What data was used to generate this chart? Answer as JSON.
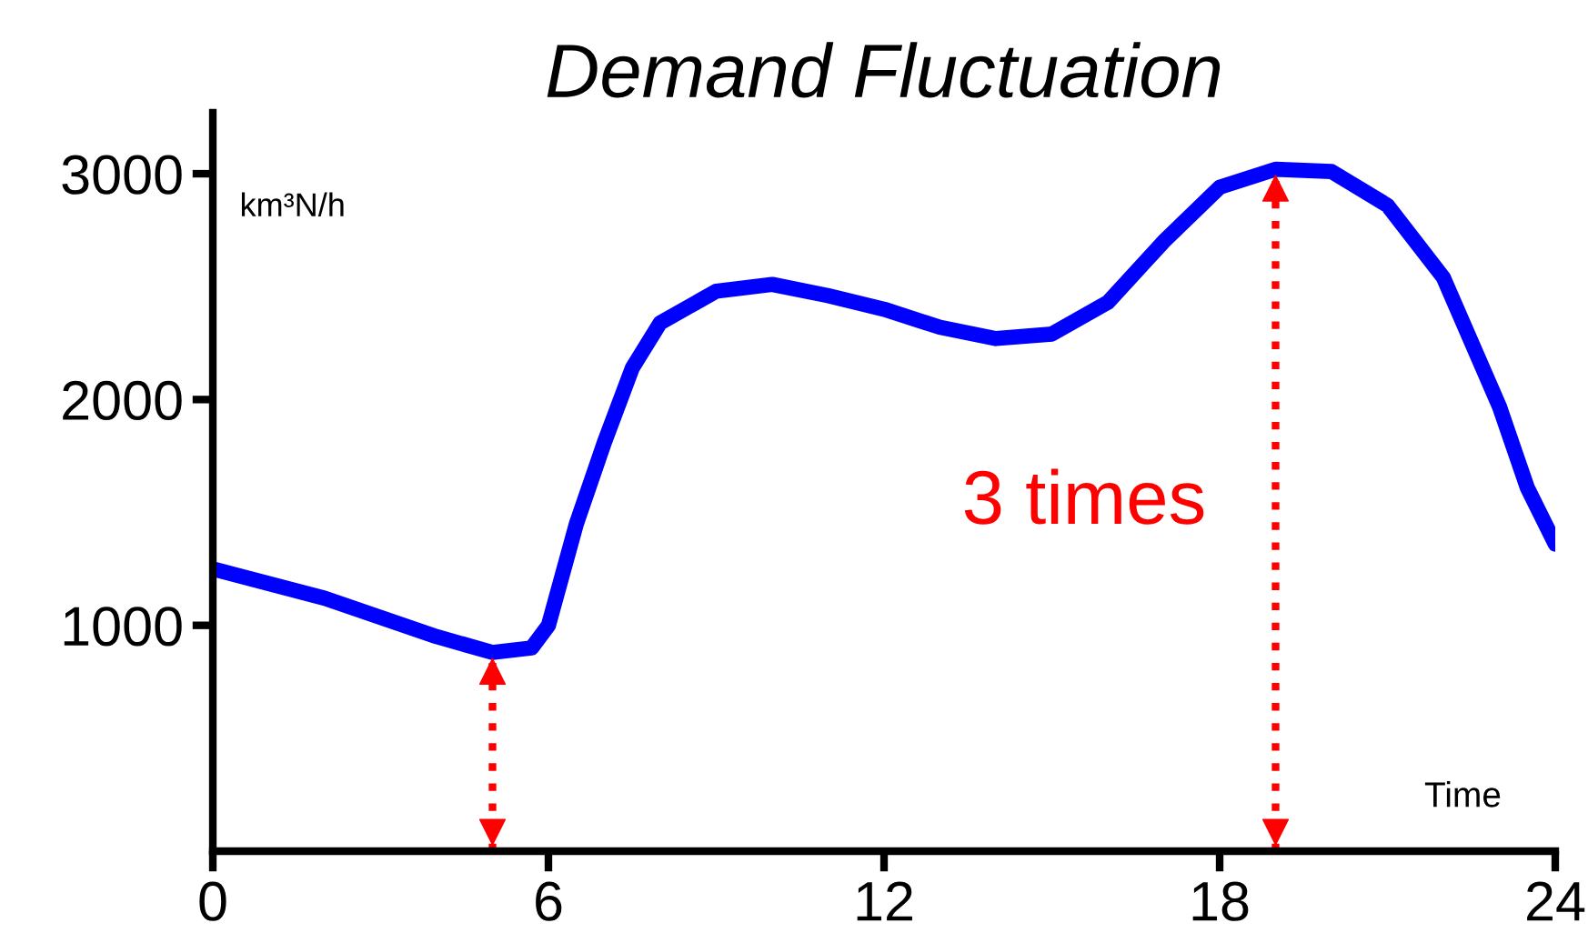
{
  "chart_data": {
    "type": "line",
    "title": "Demand Fluctuation",
    "xlabel": "Time",
    "ylabel": "km³N/h",
    "x": [
      0,
      2,
      4,
      5,
      5.7,
      6,
      6.5,
      7,
      7.5,
      8,
      9,
      10,
      11,
      12,
      13,
      14,
      15,
      16,
      17,
      18,
      19,
      20,
      21,
      22,
      23,
      23.5,
      24
    ],
    "series": [
      {
        "color": "#0000ff",
        "values": [
          1250,
          1120,
          950,
          880,
          900,
          1000,
          1450,
          1810,
          2140,
          2340,
          2480,
          2510,
          2460,
          2400,
          2320,
          2270,
          2290,
          2430,
          2700,
          2940,
          3020,
          3010,
          2860,
          2540,
          1970,
          1610,
          1360
        ]
      }
    ],
    "xlim": [
      0,
      24
    ],
    "xticks": [
      0,
      6,
      12,
      18,
      24
    ],
    "ylim": [
      0,
      3270
    ],
    "yticks": [
      1000,
      2000,
      3000
    ],
    "grid": false,
    "legend": false,
    "marker": "none",
    "line_style": "solid",
    "ref_lines": [
      {
        "axis": "x",
        "value": 5,
        "color": "#ff0000",
        "line_style": "dotted"
      },
      {
        "axis": "x",
        "value": 19,
        "color": "#ff0000",
        "line_style": "dotted"
      }
    ],
    "annotations": [
      "3 times"
    ]
  }
}
